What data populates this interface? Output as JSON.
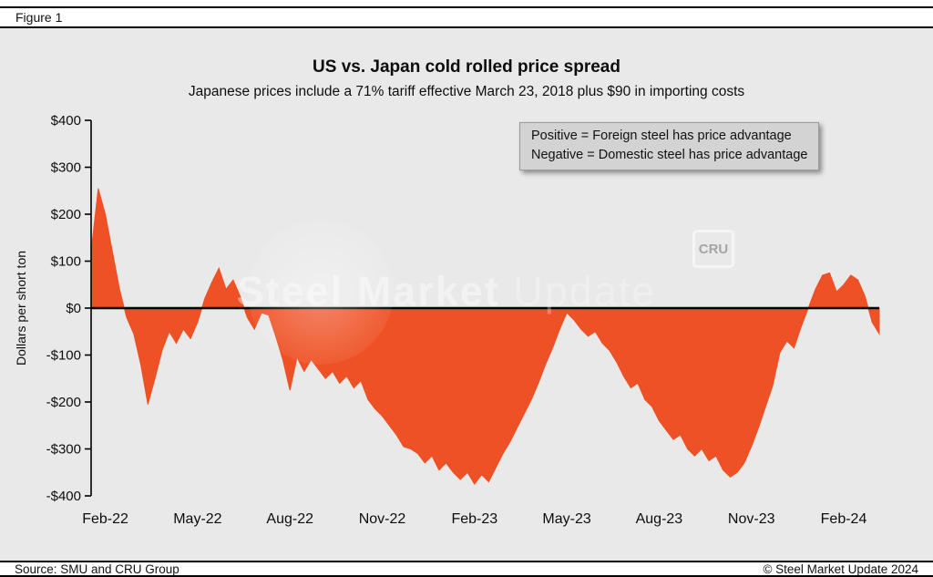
{
  "header": {
    "figure_label": "Figure 1"
  },
  "chart": {
    "title": "US vs. Japan cold rolled price spread",
    "subtitle": "Japanese prices include a 71% tariff effective March 23, 2018 plus $90 in importing costs",
    "ylabel": "Dollars per short ton"
  },
  "watermark": {
    "brand_bold": "Steel Market",
    "brand_light": "Update",
    "cru": "CRU"
  },
  "footer": {
    "source": "Source: SMU and CRU Group",
    "copyright": "© Steel Market Update 2024"
  },
  "chart_data": {
    "type": "area",
    "title": "US vs. Japan cold rolled price spread",
    "subtitle": "Japanese prices include a 71% tariff effective March 23, 2018 plus $90 in importing costs",
    "series_name": "Cold rolled price spread, US minus Japan ($ per short ton)",
    "frequency": "weekly",
    "xlabel": "",
    "ylabel": "Dollars per short ton",
    "ylim": [
      -400,
      400
    ],
    "grid": false,
    "zero_line": true,
    "legend_position": "top-right note box",
    "annotations": [
      "Positive = Foreign steel has price advantage",
      "Negative = Domestic steel has price advantage"
    ],
    "x_tick_labels": [
      "Feb-22",
      "May-22",
      "Aug-22",
      "Nov-22",
      "Feb-23",
      "May-23",
      "Aug-23",
      "Nov-23",
      "Feb-24"
    ],
    "x_tick_positions_weeks": [
      2,
      15,
      28,
      41,
      54,
      67,
      80,
      93,
      106
    ],
    "y_ticks": [
      400,
      300,
      200,
      100,
      0,
      -100,
      -200,
      -300,
      -400
    ],
    "y_tick_labels": [
      "$400",
      "$300",
      "$200",
      "$100",
      "$0",
      "-$100",
      "-$200",
      "-$300",
      "-$400"
    ],
    "values": [
      120,
      255,
      200,
      120,
      40,
      -20,
      -55,
      -120,
      -205,
      -150,
      -90,
      -50,
      -75,
      -45,
      -65,
      -30,
      20,
      55,
      85,
      40,
      60,
      25,
      -20,
      -45,
      -10,
      -15,
      -60,
      -110,
      -175,
      -105,
      -135,
      -110,
      -130,
      -150,
      -135,
      -160,
      -145,
      -170,
      -155,
      -195,
      -215,
      -230,
      -250,
      -270,
      -295,
      -300,
      -310,
      -330,
      -315,
      -345,
      -330,
      -350,
      -365,
      -350,
      -375,
      -355,
      -370,
      -340,
      -310,
      -285,
      -255,
      -225,
      -195,
      -160,
      -120,
      -85,
      -45,
      -10,
      -25,
      -45,
      -60,
      -50,
      -75,
      -90,
      -115,
      -145,
      -170,
      -160,
      -195,
      -210,
      -240,
      -260,
      -280,
      -270,
      -300,
      -315,
      -300,
      -325,
      -315,
      -345,
      -360,
      -350,
      -330,
      -295,
      -255,
      -210,
      -165,
      -95,
      -70,
      -85,
      -40,
      0,
      40,
      70,
      75,
      35,
      50,
      70,
      60,
      25,
      -30,
      -55
    ],
    "fill_color": "#ee5125",
    "background_color": "#e9e9e9",
    "zero_line_color": "#000000"
  }
}
